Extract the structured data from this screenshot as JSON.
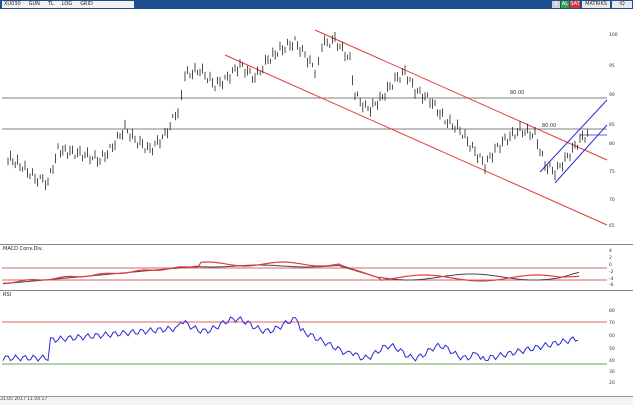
{
  "toolbar": {
    "symbol": "XU030",
    "fields": [
      "GUN",
      "TL",
      "LOG",
      "GRID"
    ],
    "right_buttons": [
      "S",
      "AL",
      "SAT",
      "MATRIKS",
      "iQ"
    ]
  },
  "panels": {
    "price": {
      "label": "",
      "yticks": [
        "100",
        "95",
        "90",
        "85",
        "80",
        "75",
        "70",
        "65"
      ],
      "annotations": [
        "80.00",
        "80.00"
      ]
    },
    "macd": {
      "label": "MACD Conv.Div.",
      "yticks": [
        "4",
        "2",
        "0",
        "-2",
        "-4",
        "-6"
      ]
    },
    "rsi": {
      "label": "RSI",
      "yticks": [
        "80",
        "70",
        "60",
        "50",
        "40",
        "30",
        "20"
      ]
    }
  },
  "bottom": {
    "text": "31.05  2017  11.04.17"
  },
  "colors": {
    "title_bar": "#1f4f8f",
    "channel": "#e53b3b",
    "ascending_channel": "#2a2ad8",
    "rsi_line": "#2a2ad8",
    "macd_signal": "#e53b3b",
    "macd_line": "#444444",
    "rsi_upper": "#cc3333",
    "rsi_lower": "#2e8b2e"
  }
}
